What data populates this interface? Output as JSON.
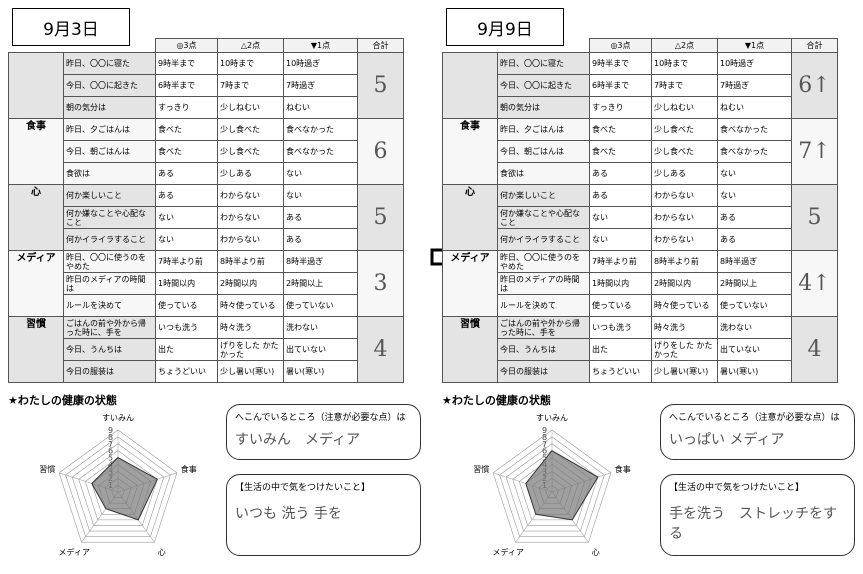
{
  "sheets": [
    {
      "date": "9月3日",
      "scores": [
        5,
        6,
        5,
        3,
        4
      ],
      "dent_answer": "すいみん　メディア",
      "care_answer": "いつも 洗う 手を"
    },
    {
      "date": "9月9日",
      "scores": [
        {
          "value": 6,
          "label": "6↑"
        },
        {
          "value": 7,
          "label": "7↑"
        },
        5,
        {
          "value": 4,
          "label": "4↑"
        },
        4
      ],
      "dent_answer": "いっぱい メディア",
      "care_answer": "手を洗う　ストレッチをする"
    }
  ],
  "table": {
    "header": [
      "◎3点",
      "△2点",
      "▼1点",
      "合計"
    ],
    "sections": [
      {
        "rows": [
          [
            "昨日、〇〇に寝た",
            "9時半まで",
            "10時まで",
            "10時過ぎ"
          ],
          [
            "今日、〇〇に起きた",
            "6時半まで",
            "7時まで",
            "7時過ぎ"
          ],
          [
            "朝の気分は",
            "すっきり",
            "少しねむい",
            "ねむい"
          ]
        ]
      },
      {
        "category": "食事",
        "rows": [
          [
            "昨日、夕ごはんは",
            "食べた",
            "少し食べた",
            "食べなかった"
          ],
          [
            "今日、朝ごはんは",
            "食べた",
            "少し食べた",
            "食べなかった"
          ],
          [
            "食欲は",
            "ある",
            "少しある",
            "ない"
          ]
        ]
      },
      {
        "category": "心",
        "rows": [
          [
            "何か楽しいこと",
            "ある",
            "わからない",
            "ない"
          ],
          [
            "何か嫌なことや心配なこと",
            "ない",
            "わからない",
            "ある"
          ],
          [
            "何かイライラすること",
            "ない",
            "わからない",
            "ある"
          ]
        ]
      },
      {
        "category": "メディア",
        "rows": [
          [
            "昨日、〇〇に使うのをやめた",
            "7時半より前",
            "8時半より前",
            "8時半過ぎ"
          ],
          [
            "昨日のメディアの時間は",
            "1時間以内",
            "2時間以内",
            "2時間以上"
          ],
          [
            "ルールを決めて",
            "使っている",
            "時々使っている",
            "使っていない"
          ]
        ]
      },
      {
        "category": "習慣",
        "rows": [
          [
            "ごはんの前や外から帰った時に、手を",
            "いつも洗う",
            "時々洗う",
            "洗わない"
          ],
          [
            "今日、うんちは",
            "出た",
            "げりをした かたかった",
            "出ていない"
          ],
          [
            "今日の服装は",
            "ちょうどいい",
            "少し暑い(寒い)",
            "暑い(寒い)"
          ]
        ]
      }
    ]
  },
  "health": {
    "title": "★わたしの健康の状態",
    "axes": [
      "すいみん",
      "食事",
      "心",
      "メディア",
      "習慣"
    ],
    "ticks": [
      1,
      2,
      3,
      4,
      5,
      6,
      7,
      8,
      9
    ],
    "dent_title": "へこんでいるところ（注意が必要な点）は",
    "care_title": "【生活の中で気をつけたいこと】"
  }
}
